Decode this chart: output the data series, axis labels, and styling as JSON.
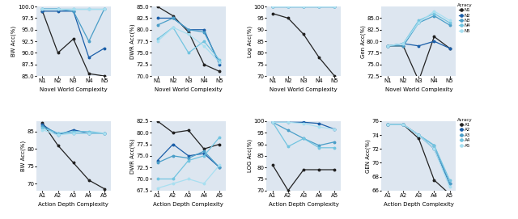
{
  "novel_xticks": [
    "N1",
    "N2",
    "N3",
    "N4",
    "N5"
  ],
  "action_xticks": [
    "A1",
    "A2",
    "A3",
    "A4",
    "A5"
  ],
  "novel_xlabel": "Novel World Complexity",
  "action_xlabel": "Action Depth Complexity",
  "colors_novel": [
    "#222222",
    "#1a5ea8",
    "#4a9ec8",
    "#72c4e0",
    "#a8dff0"
  ],
  "colors_action": [
    "#222222",
    "#1a5ea8",
    "#4a9ec8",
    "#72c4e0",
    "#a8dff0"
  ],
  "legend_novel_labels": [
    "N1",
    "N2",
    "N3",
    "N4",
    "N5"
  ],
  "legend_action_labels": [
    "A1",
    "A2",
    "A3",
    "A4",
    "A5"
  ],
  "legend_title": "Acracy",
  "bg_color": "#dde6f0",
  "bw_novel": [
    [
      99.0,
      90.0,
      93.0,
      85.5,
      85.0
    ],
    [
      99.0,
      99.0,
      99.0,
      89.0,
      91.0
    ],
    [
      99.5,
      99.5,
      99.0,
      92.5,
      99.5
    ],
    [
      99.5,
      99.5,
      99.5,
      99.5,
      99.5
    ],
    [
      99.5,
      99.5,
      99.5,
      99.5,
      99.5
    ]
  ],
  "bw_novel_ylim": [
    85.0,
    100.0
  ],
  "bw_novel_yticks": [
    85.0,
    87.5,
    90.0,
    92.5,
    95.0,
    97.5,
    100.0
  ],
  "bw_novel_ylabel": "BW Acc(%)",
  "dwr_novel": [
    [
      85.0,
      83.0,
      79.5,
      72.5,
      71.0
    ],
    [
      82.5,
      82.5,
      80.0,
      80.0,
      72.5
    ],
    [
      81.0,
      82.5,
      80.0,
      79.5,
      73.0
    ],
    [
      78.0,
      80.5,
      75.0,
      77.5,
      73.5
    ],
    [
      77.5,
      80.5,
      79.0,
      76.5,
      73.0
    ]
  ],
  "dwr_novel_ylim": [
    70.0,
    85.0
  ],
  "dwr_novel_yticks": [
    70.0,
    72.5,
    75.0,
    77.5,
    80.0,
    82.5,
    85.0
  ],
  "dwr_novel_ylabel": "DWR Acc(%)",
  "log_novel": [
    [
      97.0,
      95.0,
      88.0,
      78.0,
      70.0
    ],
    [
      100.0,
      100.0,
      100.0,
      100.0,
      100.0
    ],
    [
      100.0,
      100.0,
      100.0,
      100.0,
      100.0
    ],
    [
      100.0,
      100.0,
      100.0,
      100.0,
      100.0
    ],
    [
      100.0,
      100.0,
      100.0,
      100.0,
      100.0
    ]
  ],
  "log_novel_ylim": [
    70.0,
    100.0
  ],
  "log_novel_yticks": [
    70,
    75,
    80,
    85,
    90,
    95,
    100
  ],
  "log_novel_ylabel": "Log Acc(%)",
  "gen_novel": [
    [
      79.0,
      79.0,
      71.5,
      81.0,
      78.5
    ],
    [
      79.0,
      79.5,
      79.0,
      80.0,
      78.5
    ],
    [
      79.0,
      79.0,
      84.0,
      85.5,
      83.5
    ],
    [
      79.0,
      79.5,
      84.5,
      86.0,
      84.0
    ],
    [
      79.0,
      79.5,
      84.0,
      86.5,
      84.5
    ]
  ],
  "gen_novel_ylim": [
    72.5,
    87.5
  ],
  "gen_novel_yticks": [
    72.5,
    75.0,
    77.5,
    80.0,
    82.5,
    85.0
  ],
  "gen_novel_ylabel": "Gen Acc(%)",
  "bw_action": [
    [
      87.5,
      81.0,
      76.0,
      71.0,
      68.5
    ],
    [
      87.0,
      84.0,
      85.5,
      84.5,
      84.5
    ],
    [
      86.5,
      84.5,
      84.5,
      84.5,
      84.5
    ],
    [
      86.0,
      84.5,
      85.0,
      85.0,
      84.5
    ],
    [
      85.5,
      84.0,
      84.5,
      84.5,
      84.5
    ]
  ],
  "bw_action_ylim": [
    68.0,
    88.0
  ],
  "bw_action_yticks": [
    70,
    75,
    80,
    85
  ],
  "bw_action_ylabel": "BW Acc(%)",
  "dwr_action": [
    [
      82.5,
      80.0,
      80.5,
      76.5,
      77.5
    ],
    [
      74.0,
      77.5,
      75.0,
      75.5,
      72.5
    ],
    [
      73.5,
      75.0,
      74.5,
      76.0,
      72.5
    ],
    [
      70.0,
      70.0,
      74.0,
      75.0,
      79.0
    ],
    [
      68.0,
      69.0,
      70.0,
      69.0,
      73.0
    ]
  ],
  "dwr_action_ylim": [
    67.5,
    82.5
  ],
  "dwr_action_yticks": [
    67.5,
    70.0,
    72.5,
    75.0,
    77.5,
    80.0,
    82.5
  ],
  "dwr_action_ylabel": "DWR Acc(%)",
  "log_action": [
    [
      81.0,
      70.0,
      79.0,
      79.0,
      79.0
    ],
    [
      99.5,
      99.5,
      99.5,
      99.0,
      96.5
    ],
    [
      99.5,
      96.0,
      92.5,
      89.5,
      91.0
    ],
    [
      99.5,
      89.0,
      92.5,
      88.5,
      88.5
    ],
    [
      99.5,
      99.5,
      99.0,
      97.5,
      96.5
    ]
  ],
  "log_action_ylim": [
    70.0,
    100.0
  ],
  "log_action_yticks": [
    70,
    75,
    80,
    85,
    90,
    95,
    100
  ],
  "log_action_ylabel": "LOG Acc(%)",
  "gen_action": [
    [
      75.5,
      75.5,
      73.5,
      67.5,
      65.5
    ],
    [
      75.5,
      75.5,
      74.0,
      72.0,
      67.0
    ],
    [
      75.5,
      75.5,
      74.0,
      72.5,
      67.0
    ],
    [
      75.5,
      75.5,
      74.0,
      72.5,
      67.5
    ],
    [
      75.5,
      75.5,
      74.0,
      72.0,
      66.5
    ]
  ],
  "gen_action_ylim": [
    66.0,
    76.0
  ],
  "gen_action_yticks": [
    66,
    68,
    70,
    72,
    74,
    76
  ],
  "gen_action_ylabel": "GEN Acc(%)"
}
